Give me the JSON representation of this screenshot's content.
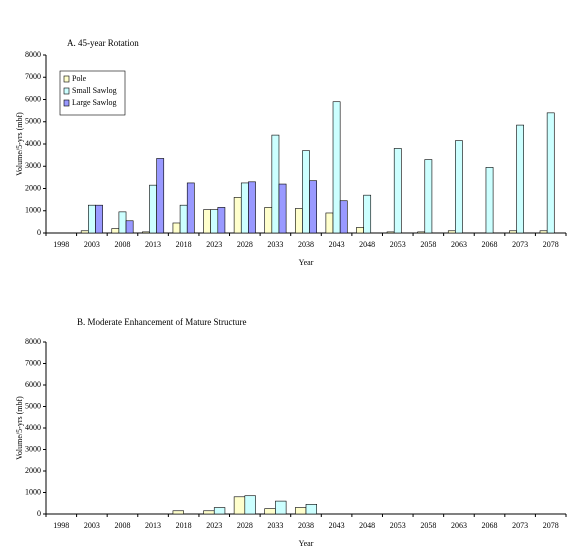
{
  "chart_data": [
    {
      "type": "bar",
      "title": "A. 45-year Rotation",
      "x_label": "Year",
      "y_label": "Volume/5-yrs (mbf)",
      "categories": [
        "1998",
        "2003",
        "2008",
        "2013",
        "2018",
        "2023",
        "2028",
        "2033",
        "2038",
        "2043",
        "2048",
        "2053",
        "2058",
        "2063",
        "2068",
        "2073",
        "2078"
      ],
      "series": [
        {
          "name": "Pole",
          "color": "#ffffcc",
          "values": [
            0,
            100,
            200,
            50,
            450,
            1050,
            1600,
            1150,
            1100,
            900,
            250,
            50,
            50,
            100,
            0,
            100,
            100
          ]
        },
        {
          "name": "Small Sawlog",
          "color": "#ccffff",
          "values": [
            0,
            1250,
            950,
            2150,
            1250,
            1050,
            2250,
            4400,
            3700,
            5900,
            1700,
            3800,
            3300,
            4150,
            2950,
            4850,
            5400
          ]
        },
        {
          "name": "Large Sawlog",
          "color": "#9999ff",
          "values": [
            0,
            1250,
            550,
            3350,
            2250,
            1150,
            2300,
            2200,
            2350,
            1450,
            0,
            0,
            0,
            0,
            0,
            0,
            0
          ]
        }
      ],
      "ylim": [
        0,
        8000
      ],
      "yticks": [
        0,
        1000,
        2000,
        3000,
        4000,
        5000,
        6000,
        7000,
        8000
      ],
      "legend": "upper left"
    },
    {
      "type": "bar",
      "title": "B. Moderate Enhancement of Mature Structure",
      "x_label": "Year",
      "y_label": "Volume/5-yrs (mbf)",
      "categories": [
        "1998",
        "2003",
        "2008",
        "2013",
        "2018",
        "2023",
        "2028",
        "2033",
        "2038",
        "2043",
        "2048",
        "2053",
        "2058",
        "2063",
        "2068",
        "2073",
        "2078"
      ],
      "series": [
        {
          "color": "#ffffcc",
          "values": [
            0,
            0,
            0,
            0,
            150,
            150,
            800,
            250,
            300,
            0,
            0,
            0,
            0,
            0,
            0,
            0,
            0
          ]
        },
        {
          "color": "#ccffff",
          "values": [
            0,
            0,
            0,
            0,
            0,
            300,
            850,
            600,
            450,
            0,
            0,
            0,
            0,
            0,
            0,
            0,
            0
          ]
        }
      ],
      "ylim": [
        0,
        8000
      ],
      "yticks": [
        0,
        1000,
        2000,
        3000,
        4000,
        5000,
        6000,
        7000,
        8000
      ]
    }
  ]
}
